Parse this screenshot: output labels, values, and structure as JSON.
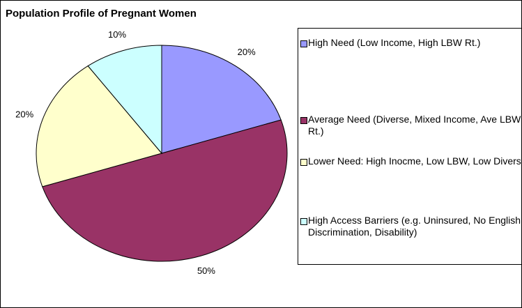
{
  "chart_data": {
    "type": "pie",
    "title": "Population Profile of Pregnant Women",
    "categories": [
      "High Need (Low Income, High LBW Rt.)",
      "Average Need (Diverse, Mixed Income, Ave LBW Rt.)",
      "Lower Need: High Inocme, Low LBW, Low Diversity",
      "High Access Barriers (e.g. Uninsured, No English, Discrimination, Disability)"
    ],
    "values": [
      20,
      50,
      20,
      10
    ],
    "value_labels": [
      "20%",
      "50%",
      "20%",
      "10%"
    ],
    "colors": [
      "#9999ff",
      "#993366",
      "#ffffcc",
      "#ccffff"
    ],
    "legend": "right"
  }
}
